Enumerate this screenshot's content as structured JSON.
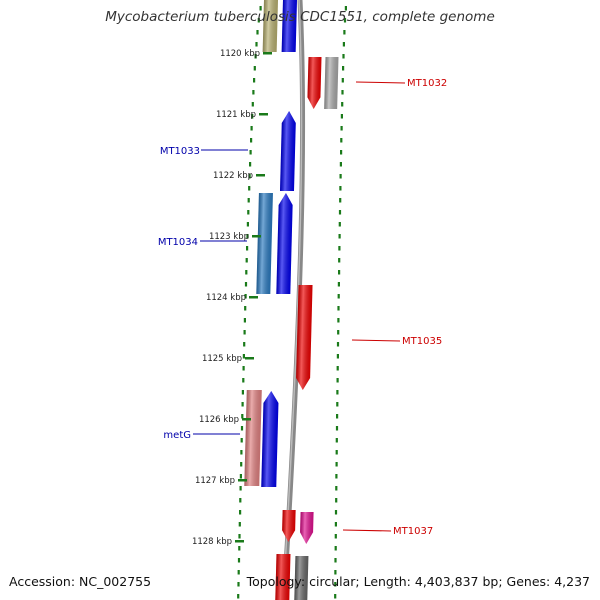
{
  "title": "Mycobacterium tuberculosis CDC1551, complete genome",
  "accession": "Accession: NC_002755",
  "topology": "Topology: circular; Length: 4,403,837 bp; Genes: 4,237",
  "colors": {
    "backbone": "#888888",
    "tick": "#1a7a1a",
    "reverse_label": "#0000aa",
    "forward_label": "#cc0000",
    "gene_blue": "#0000ee",
    "gene_red": "#ee0000",
    "gene_olive": "#b8b070",
    "gene_grey": "#a8a8a8",
    "gene_teal": "#2a7ac0",
    "gene_pink": "#e08080",
    "gene_magenta": "#e0108f",
    "gene_dark": "#666666"
  },
  "scale": {
    "unit": "kbp",
    "labels": [
      "1120 kbp",
      "1121 kbp",
      "1122 kbp",
      "1123 kbp",
      "1124 kbp",
      "1125 kbp",
      "1126 kbp",
      "1127 kbp",
      "1128 kbp"
    ]
  },
  "gene_labels": [
    {
      "name": "MT1032",
      "strand": "forward"
    },
    {
      "name": "MT1033",
      "strand": "reverse"
    },
    {
      "name": "MT1034",
      "strand": "reverse"
    },
    {
      "name": "MT1035",
      "strand": "forward"
    },
    {
      "name": "metG",
      "strand": "reverse"
    },
    {
      "name": "MT1037",
      "strand": "forward"
    }
  ]
}
